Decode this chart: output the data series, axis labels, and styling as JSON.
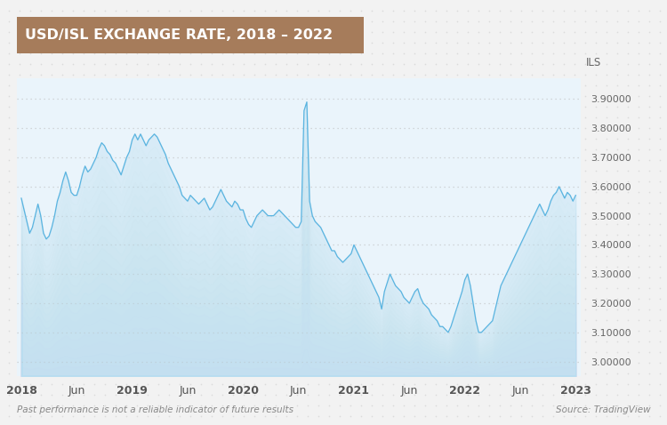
{
  "title": "USD/ISL EXCHANGE RATE, 2018 – 2022",
  "title_bg_color": "#a67c5b",
  "title_text_color": "#ffffff",
  "bg_color": "#f2f2f2",
  "plot_bg_color": "#eaf4fb",
  "line_color": "#5ab4e0",
  "fill_color": "#b8ddf0",
  "ylabel": "ILS",
  "source_text": "Source: TradingView",
  "disclaimer_text": "Past performance is not a reliable indicator of future results",
  "yticks": [
    3.0,
    3.1,
    3.2,
    3.3,
    3.4,
    3.5,
    3.6,
    3.7,
    3.8,
    3.9
  ],
  "ylim": [
    2.95,
    3.97
  ],
  "xtick_labels": [
    "2018",
    "Jun",
    "2019",
    "Jun",
    "2020",
    "Jun",
    "2021",
    "Jun",
    "2022",
    "Jun",
    "2023"
  ],
  "xtick_positions": [
    0,
    6,
    12,
    18,
    24,
    30,
    36,
    42,
    48,
    54,
    60
  ],
  "grid_color": "#bbbbbb",
  "grid_alpha": 0.7,
  "data_x": [
    0,
    0.3,
    0.6,
    0.9,
    1.2,
    1.5,
    1.8,
    2.1,
    2.4,
    2.7,
    3.0,
    3.3,
    3.6,
    3.9,
    4.2,
    4.5,
    4.8,
    5.1,
    5.4,
    5.7,
    6.0,
    6.3,
    6.6,
    6.9,
    7.2,
    7.5,
    7.8,
    8.1,
    8.4,
    8.7,
    9.0,
    9.3,
    9.6,
    9.9,
    10.2,
    10.5,
    10.8,
    11.1,
    11.4,
    11.7,
    12.0,
    12.3,
    12.6,
    12.9,
    13.2,
    13.5,
    13.8,
    14.1,
    14.4,
    14.7,
    15.0,
    15.3,
    15.6,
    15.9,
    16.2,
    16.5,
    16.8,
    17.1,
    17.4,
    17.7,
    18.0,
    18.3,
    18.6,
    18.9,
    19.2,
    19.5,
    19.8,
    20.1,
    20.4,
    20.7,
    21.0,
    21.3,
    21.6,
    21.9,
    22.2,
    22.5,
    22.8,
    23.1,
    23.4,
    23.7,
    24.0,
    24.3,
    24.6,
    24.9,
    25.2,
    25.5,
    25.8,
    26.1,
    26.4,
    26.7,
    27.0,
    27.3,
    27.6,
    27.9,
    28.2,
    28.5,
    28.8,
    29.1,
    29.4,
    29.7,
    30.0,
    30.3,
    30.6,
    30.9,
    31.2,
    31.5,
    31.8,
    32.1,
    32.4,
    32.7,
    33.0,
    33.3,
    33.6,
    33.9,
    34.2,
    34.5,
    34.8,
    35.1,
    35.4,
    35.7,
    36.0,
    36.3,
    36.6,
    36.9,
    37.2,
    37.5,
    37.8,
    38.1,
    38.4,
    38.7,
    39.0,
    39.3,
    39.6,
    39.9,
    40.2,
    40.5,
    40.8,
    41.1,
    41.4,
    41.7,
    42.0,
    42.3,
    42.6,
    42.9,
    43.2,
    43.5,
    43.8,
    44.1,
    44.4,
    44.7,
    45.0,
    45.3,
    45.6,
    45.9,
    46.2,
    46.5,
    46.8,
    47.1,
    47.4,
    47.7,
    48.0,
    48.3,
    48.6,
    48.9,
    49.2,
    49.5,
    49.8,
    50.1,
    50.4,
    50.7,
    51.0,
    51.3,
    51.6,
    51.9,
    52.2,
    52.5,
    52.8,
    53.1,
    53.4,
    53.7,
    54.0,
    54.3,
    54.6,
    54.9,
    55.2,
    55.5,
    55.8,
    56.1,
    56.4,
    56.7,
    57.0,
    57.3,
    57.6,
    57.9,
    58.2,
    58.5,
    58.8,
    59.1,
    59.4,
    59.7,
    60.0
  ],
  "data_y": [
    3.56,
    3.52,
    3.48,
    3.44,
    3.46,
    3.5,
    3.54,
    3.5,
    3.44,
    3.42,
    3.43,
    3.46,
    3.5,
    3.55,
    3.58,
    3.62,
    3.65,
    3.62,
    3.58,
    3.57,
    3.57,
    3.6,
    3.64,
    3.67,
    3.65,
    3.66,
    3.68,
    3.7,
    3.73,
    3.75,
    3.74,
    3.72,
    3.71,
    3.69,
    3.68,
    3.66,
    3.64,
    3.67,
    3.7,
    3.72,
    3.76,
    3.78,
    3.76,
    3.78,
    3.76,
    3.74,
    3.76,
    3.77,
    3.78,
    3.77,
    3.75,
    3.73,
    3.71,
    3.68,
    3.66,
    3.64,
    3.62,
    3.6,
    3.57,
    3.56,
    3.55,
    3.57,
    3.56,
    3.55,
    3.54,
    3.55,
    3.56,
    3.54,
    3.52,
    3.53,
    3.55,
    3.57,
    3.59,
    3.57,
    3.55,
    3.54,
    3.53,
    3.55,
    3.54,
    3.52,
    3.52,
    3.49,
    3.47,
    3.46,
    3.48,
    3.5,
    3.51,
    3.52,
    3.51,
    3.5,
    3.5,
    3.5,
    3.51,
    3.52,
    3.51,
    3.5,
    3.49,
    3.48,
    3.47,
    3.46,
    3.46,
    3.48,
    3.86,
    3.89,
    3.55,
    3.5,
    3.48,
    3.47,
    3.46,
    3.44,
    3.42,
    3.4,
    3.38,
    3.38,
    3.36,
    3.35,
    3.34,
    3.35,
    3.36,
    3.37,
    3.4,
    3.38,
    3.36,
    3.34,
    3.32,
    3.3,
    3.28,
    3.26,
    3.24,
    3.22,
    3.18,
    3.24,
    3.27,
    3.3,
    3.28,
    3.26,
    3.25,
    3.24,
    3.22,
    3.21,
    3.2,
    3.22,
    3.24,
    3.25,
    3.22,
    3.2,
    3.19,
    3.18,
    3.16,
    3.15,
    3.14,
    3.12,
    3.12,
    3.11,
    3.1,
    3.12,
    3.15,
    3.18,
    3.21,
    3.24,
    3.28,
    3.3,
    3.26,
    3.2,
    3.14,
    3.1,
    3.1,
    3.11,
    3.12,
    3.13,
    3.14,
    3.18,
    3.22,
    3.26,
    3.28,
    3.3,
    3.32,
    3.34,
    3.36,
    3.38,
    3.4,
    3.42,
    3.44,
    3.46,
    3.48,
    3.5,
    3.52,
    3.54,
    3.52,
    3.5,
    3.52,
    3.55,
    3.57,
    3.58,
    3.6,
    3.58,
    3.56,
    3.58,
    3.57,
    3.55,
    3.57
  ]
}
